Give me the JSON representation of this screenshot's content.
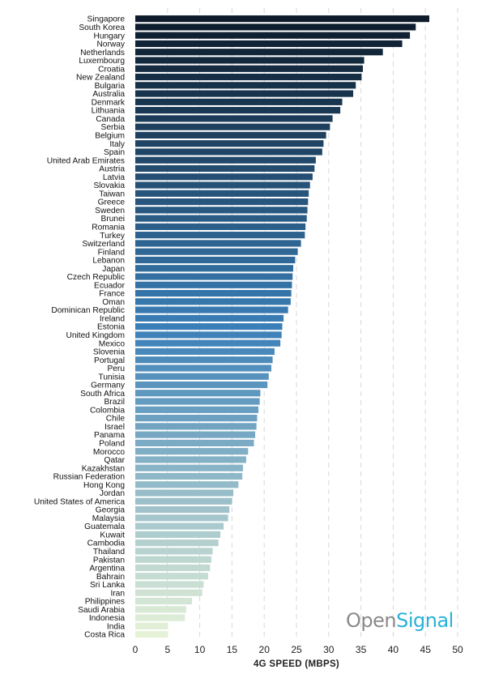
{
  "logo": {
    "part1": "Open",
    "part2": "Signal"
  },
  "chart_data": {
    "type": "bar",
    "orientation": "horizontal",
    "xlabel": "4G SPEED (MBPS)",
    "ylabel": "",
    "title": "",
    "xlim": [
      0,
      50
    ],
    "xticks": [
      0,
      5,
      10,
      15,
      20,
      25,
      30,
      35,
      40,
      45,
      50
    ],
    "grid": true,
    "color_scale": [
      "#0d1b2a",
      "#3a7fb8",
      "#e6f2d8"
    ],
    "categories": [
      "Singapore",
      "South Korea",
      "Hungary",
      "Norway",
      "Netherlands",
      "Luxembourg",
      "Croatia",
      "New Zealand",
      "Bulgaria",
      "Australia",
      "Denmark",
      "Lithuania",
      "Canada",
      "Serbia",
      "Belgium",
      "Italy",
      "Spain",
      "United Arab Emirates",
      "Austria",
      "Latvia",
      "Slovakia",
      "Taiwan",
      "Greece",
      "Sweden",
      "Brunei",
      "Romania",
      "Turkey",
      "Switzerland",
      "Finland",
      "Lebanon",
      "Japan",
      "Czech Republic",
      "Ecuador",
      "France",
      "Oman",
      "Dominican Republic",
      "Ireland",
      "Estonia",
      "United Kingdom",
      "Mexico",
      "Slovenia",
      "Portugal",
      "Peru",
      "Tunisia",
      "Germany",
      "South Africa",
      "Brazil",
      "Colombia",
      "Chile",
      "Israel",
      "Panama",
      "Poland",
      "Morocco",
      "Qatar",
      "Kazakhstan",
      "Russian Federation",
      "Hong Kong",
      "Jordan",
      "United States of America",
      "Georgia",
      "Malaysia",
      "Guatemala",
      "Kuwait",
      "Cambodia",
      "Thailand",
      "Pakistan",
      "Argentina",
      "Bahrain",
      "Sri Lanka",
      "Iran",
      "Philippines",
      "Saudi Arabia",
      "Indonesia",
      "India",
      "Costa Rica"
    ],
    "values": [
      45.6,
      43.5,
      42.6,
      41.4,
      38.4,
      35.5,
      35.3,
      35.1,
      34.2,
      33.8,
      32.1,
      31.8,
      30.6,
      30.2,
      29.6,
      29.2,
      29.0,
      28.0,
      27.8,
      27.5,
      27.1,
      26.9,
      26.8,
      26.7,
      26.6,
      26.4,
      26.3,
      25.7,
      25.2,
      24.8,
      24.5,
      24.4,
      24.3,
      24.2,
      24.1,
      23.7,
      23.0,
      22.8,
      22.7,
      22.5,
      21.6,
      21.3,
      21.1,
      20.7,
      20.5,
      19.4,
      19.3,
      19.1,
      18.9,
      18.8,
      18.6,
      18.4,
      17.5,
      17.2,
      16.7,
      16.6,
      16.0,
      15.2,
      15.0,
      14.6,
      14.4,
      13.7,
      13.2,
      12.9,
      12.0,
      11.8,
      11.6,
      11.3,
      10.6,
      10.4,
      8.8,
      7.9,
      7.7,
      5.1,
      5.1
    ]
  }
}
